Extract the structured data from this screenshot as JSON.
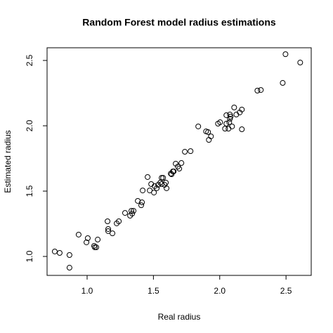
{
  "chart_data": {
    "type": "scatter",
    "title": "Random Forest model radius estimations",
    "x_label": "Real radius",
    "y_label": "Estimated radius",
    "color": "#000000",
    "x": [
      0.756,
      0.793,
      0.867,
      0.867,
      0.936,
      0.995,
      1.005,
      1.053,
      1.058,
      1.069,
      1.08,
      1.154,
      1.159,
      1.159,
      1.191,
      1.223,
      1.239,
      1.286,
      1.324,
      1.334,
      1.34,
      1.35,
      1.382,
      1.408,
      1.414,
      1.419,
      1.456,
      1.472,
      1.483,
      1.504,
      1.509,
      1.525,
      1.536,
      1.552,
      1.562,
      1.562,
      1.573,
      1.584,
      1.594,
      1.599,
      1.631,
      1.647,
      1.637,
      1.653,
      1.668,
      1.684,
      1.695,
      1.711,
      1.737,
      1.78,
      1.838,
      1.897,
      1.912,
      1.918,
      1.934,
      1.987,
      2.003,
      2.04,
      2.05,
      2.05,
      2.066,
      2.072,
      2.077,
      2.077,
      2.082,
      2.093,
      2.109,
      2.125,
      2.151,
      2.167,
      2.167,
      2.284,
      2.31,
      2.475,
      2.496,
      2.607
    ],
    "y": [
      1.038,
      1.027,
      1.011,
      0.914,
      1.167,
      1.108,
      1.14,
      1.081,
      1.07,
      1.07,
      1.129,
      1.269,
      1.21,
      1.194,
      1.177,
      1.253,
      1.269,
      1.333,
      1.312,
      1.349,
      1.328,
      1.349,
      1.425,
      1.392,
      1.414,
      1.505,
      1.608,
      1.505,
      1.554,
      1.489,
      1.538,
      1.522,
      1.548,
      1.565,
      1.602,
      1.554,
      1.602,
      1.548,
      1.565,
      1.522,
      1.634,
      1.651,
      1.629,
      1.651,
      1.71,
      1.688,
      1.672,
      1.715,
      1.801,
      1.806,
      1.995,
      1.957,
      1.952,
      1.892,
      1.919,
      2.016,
      2.027,
      1.978,
      2.016,
      2.081,
      1.978,
      2.027,
      2.054,
      2.086,
      2.07,
      1.995,
      2.14,
      2.086,
      2.102,
      2.124,
      1.973,
      2.269,
      2.274,
      2.328,
      2.548,
      2.484
    ],
    "xlim": [
      0.698,
      2.69
    ],
    "ylim": [
      0.855,
      2.597
    ],
    "xticks": [
      {
        "value": 1,
        "label": "1.0"
      },
      1.5,
      {
        "value": 2,
        "label": "2.0"
      },
      2.5
    ],
    "yticks": [
      {
        "value": 1,
        "label": "1.0"
      },
      1.5,
      {
        "value": 2,
        "label": "2.0"
      },
      2.5
    ]
  }
}
